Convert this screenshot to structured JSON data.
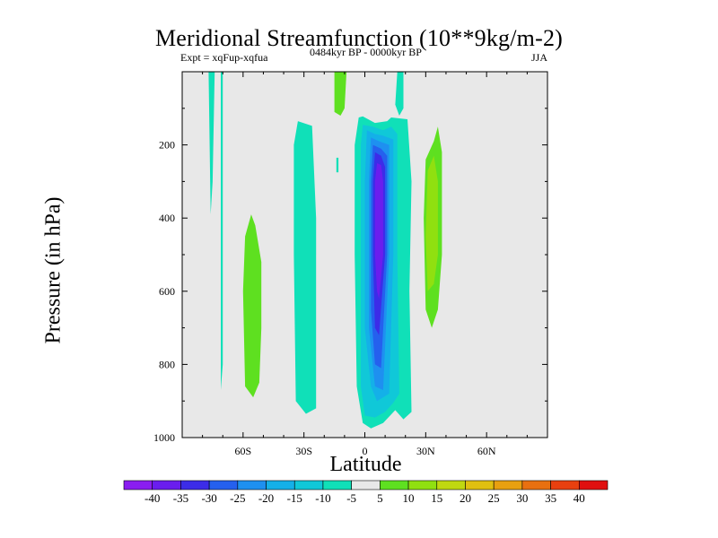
{
  "chart_data": {
    "type": "heatmap",
    "title": "Meridional Streamfunction (10**9kg/m-2)",
    "left_subtitle": "Expt = xqFup-xqfua",
    "center_subtitle": "0484kyr BP - 0000kyr BP",
    "right_subtitle": "JJA",
    "xlabel": "Latitude",
    "ylabel": "Pressure (in hPa)",
    "xlim": [
      -90,
      90
    ],
    "ylim": [
      1000,
      0
    ],
    "x_ticks": [
      {
        "value": -60,
        "label": "60S"
      },
      {
        "value": -30,
        "label": "30S"
      },
      {
        "value": 0,
        "label": "0"
      },
      {
        "value": 30,
        "label": "30N"
      },
      {
        "value": 60,
        "label": "60N"
      }
    ],
    "y_ticks": [
      {
        "value": 200,
        "label": "200"
      },
      {
        "value": 400,
        "label": "400"
      },
      {
        "value": 600,
        "label": "600"
      },
      {
        "value": 800,
        "label": "800"
      },
      {
        "value": 1000,
        "label": "1000"
      }
    ],
    "colorbar": {
      "levels": [
        -40,
        -35,
        -30,
        -25,
        -20,
        -15,
        -10,
        -5,
        5,
        10,
        15,
        20,
        25,
        30,
        35,
        40
      ],
      "labels": [
        "-40",
        "-35",
        "-30",
        "-25",
        "-20",
        "-15",
        "-10",
        "-5",
        "5",
        "10",
        "15",
        "20",
        "25",
        "30",
        "35",
        "40"
      ],
      "colors": [
        "#8a1df0",
        "#6a1dee",
        "#3c2ce8",
        "#2560ee",
        "#1e90f0",
        "#14b0e8",
        "#10c8d8",
        "#10e0b8",
        "#e8e8e8",
        "#5ee020",
        "#90e010",
        "#c0d810",
        "#e0c010",
        "#e8a010",
        "#e87010",
        "#e84010",
        "#e01010"
      ]
    },
    "contour_regions": [
      {
        "name": "-10 to -5",
        "color": "#10e0b8",
        "points": [
          [
            -33,
            135
          ],
          [
            -26,
            148
          ],
          [
            -24,
            400
          ],
          [
            -24,
            920
          ],
          [
            -29,
            935
          ],
          [
            -34,
            900
          ],
          [
            -35,
            500
          ],
          [
            -35,
            200
          ]
        ]
      },
      {
        "name": "-10 to -5",
        "color": "#10e0b8",
        "points": [
          [
            -3,
            125
          ],
          [
            -1,
            122
          ],
          [
            5,
            140
          ],
          [
            11,
            135
          ],
          [
            13,
            125
          ],
          [
            21,
            130
          ],
          [
            23,
            300
          ],
          [
            22,
            600
          ],
          [
            23,
            930
          ],
          [
            19,
            950
          ],
          [
            15,
            925
          ],
          [
            9,
            960
          ],
          [
            3,
            975
          ],
          [
            -1,
            960
          ],
          [
            -4,
            860
          ],
          [
            -5,
            500
          ],
          [
            -5,
            200
          ]
        ]
      },
      {
        "name": "-10 to -5",
        "color": "#10e0b8",
        "points": [
          [
            16,
            0
          ],
          [
            19,
            0
          ],
          [
            19,
            100
          ],
          [
            17,
            120
          ],
          [
            15,
            90
          ]
        ]
      },
      {
        "name": "-10 to -5",
        "color": "#10e0b8",
        "points": [
          [
            -77,
            0
          ],
          [
            -74,
            0
          ],
          [
            -75,
            300
          ],
          [
            -76,
            390
          ]
        ]
      },
      {
        "name": "-10 to -5",
        "color": "#10e0b8",
        "points": [
          [
            -71,
            0
          ],
          [
            -70,
            0
          ],
          [
            -70,
            800
          ],
          [
            -71,
            870
          ]
        ]
      },
      {
        "name": "-10 to -5",
        "color": "#10e0b8",
        "points": [
          [
            -14,
            235
          ],
          [
            -13,
            235
          ],
          [
            -13,
            275
          ],
          [
            -14,
            275
          ]
        ]
      },
      {
        "name": "-15 to -10",
        "color": "#10c8d8",
        "points": [
          [
            -1,
            145
          ],
          [
            4,
            150
          ],
          [
            9,
            160
          ],
          [
            13,
            150
          ],
          [
            16,
            170
          ],
          [
            16,
            500
          ],
          [
            17,
            880
          ],
          [
            14,
            905
          ],
          [
            10,
            930
          ],
          [
            5,
            945
          ],
          [
            0,
            940
          ],
          [
            -2,
            860
          ],
          [
            -2,
            500
          ],
          [
            -2,
            200
          ]
        ]
      },
      {
        "name": "-20 to -15",
        "color": "#14b0e8",
        "points": [
          [
            1,
            160
          ],
          [
            5,
            170
          ],
          [
            9,
            175
          ],
          [
            14,
            185
          ],
          [
            14,
            500
          ],
          [
            12,
            880
          ],
          [
            6,
            900
          ],
          [
            3,
            860
          ],
          [
            0,
            700
          ],
          [
            0,
            300
          ]
        ]
      },
      {
        "name": "-25 to -20",
        "color": "#1e90f0",
        "points": [
          [
            3,
            180
          ],
          [
            7,
            190
          ],
          [
            12,
            200
          ],
          [
            12,
            500
          ],
          [
            9,
            870
          ],
          [
            5,
            860
          ],
          [
            2,
            700
          ],
          [
            2,
            300
          ]
        ]
      },
      {
        "name": "-30 to -25",
        "color": "#2560ee",
        "points": [
          [
            4,
            200
          ],
          [
            8,
            210
          ],
          [
            11,
            230
          ],
          [
            11,
            500
          ],
          [
            8,
            810
          ],
          [
            5,
            800
          ],
          [
            3,
            650
          ],
          [
            3,
            300
          ]
        ]
      },
      {
        "name": "-35 to -30",
        "color": "#3c2ce8",
        "points": [
          [
            5,
            220
          ],
          [
            8,
            230
          ],
          [
            10,
            260
          ],
          [
            10,
            500
          ],
          [
            7,
            720
          ],
          [
            5,
            700
          ],
          [
            4,
            500
          ],
          [
            4,
            300
          ]
        ]
      },
      {
        "name": "-40 to -35",
        "color": "#6a1dee",
        "points": [
          [
            6,
            250
          ],
          [
            8,
            255
          ],
          [
            9,
            300
          ],
          [
            9,
            500
          ],
          [
            7,
            620
          ],
          [
            6,
            600
          ],
          [
            5,
            500
          ],
          [
            5,
            300
          ]
        ]
      },
      {
        "name": "5 to 10",
        "color": "#5ee020",
        "points": [
          [
            -56,
            390
          ],
          [
            -54,
            420
          ],
          [
            -51,
            520
          ],
          [
            -51,
            700
          ],
          [
            -52,
            850
          ],
          [
            -55,
            890
          ],
          [
            -59,
            860
          ],
          [
            -60,
            600
          ],
          [
            -59,
            450
          ]
        ]
      },
      {
        "name": "5 to 10",
        "color": "#5ee020",
        "points": [
          [
            30,
            240
          ],
          [
            34,
            190
          ],
          [
            36,
            150
          ],
          [
            38,
            220
          ],
          [
            38,
            500
          ],
          [
            36,
            650
          ],
          [
            33,
            700
          ],
          [
            30,
            650
          ],
          [
            29,
            400
          ]
        ]
      },
      {
        "name": "5 to 10",
        "color": "#5ee020",
        "points": [
          [
            -15,
            0
          ],
          [
            -9,
            0
          ],
          [
            -10,
            100
          ],
          [
            -12,
            120
          ],
          [
            -15,
            110
          ]
        ]
      },
      {
        "name": "10 to 15",
        "color": "#90e010",
        "points": [
          [
            31,
            270
          ],
          [
            34,
            230
          ],
          [
            36,
            300
          ],
          [
            36,
            500
          ],
          [
            34,
            580
          ],
          [
            31,
            600
          ],
          [
            30,
            450
          ]
        ]
      }
    ]
  }
}
